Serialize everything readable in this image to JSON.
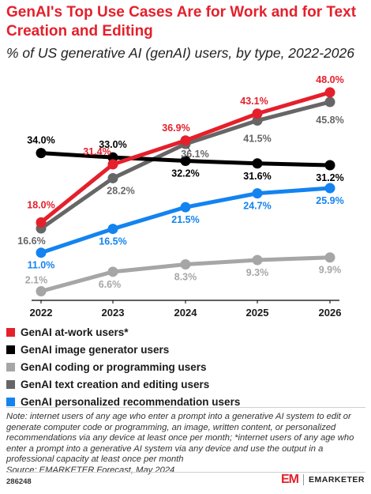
{
  "header": {
    "title": "GenAI's Top Use Cases Are for Work and for Text Creation and Editing",
    "subtitle": "% of US generative AI (genAI) users, by type, 2022-2026"
  },
  "chart_data": {
    "type": "line",
    "categories": [
      "2022",
      "2023",
      "2024",
      "2025",
      "2026"
    ],
    "ylim": [
      0,
      52
    ],
    "grid": false,
    "legend_position": "bottom",
    "series": [
      {
        "name": "GenAI at-work users*",
        "color": "#e4202b",
        "label_color": "#e4202b",
        "values": [
          18.0,
          31.4,
          36.9,
          43.1,
          48.0
        ],
        "labels": [
          "18.0%",
          "31.4%",
          "36.9%",
          "43.1%",
          "48.0%"
        ]
      },
      {
        "name": "GenAI image generator users",
        "color": "#000000",
        "label_color": "#000000",
        "values": [
          34.0,
          33.0,
          32.2,
          31.6,
          31.2
        ],
        "labels": [
          "34.0%",
          "33.0%",
          "32.2%",
          "31.6%",
          "31.2%"
        ]
      },
      {
        "name": "GenAI coding or programming users",
        "color": "#a6a6a6",
        "label_color": "#a6a6a6",
        "values": [
          2.1,
          6.6,
          8.3,
          9.3,
          9.9
        ],
        "labels": [
          "2.1%",
          "6.6%",
          "8.3%",
          "9.3%",
          "9.9%"
        ]
      },
      {
        "name": "GenAI text creation and editing users",
        "color": "#666666",
        "label_color": "#666666",
        "values": [
          16.6,
          28.2,
          36.1,
          41.5,
          45.8
        ],
        "labels": [
          "16.6%",
          "28.2%",
          "36.1%",
          "41.5%",
          "45.8%"
        ]
      },
      {
        "name": "GenAI personalized recommendation users",
        "color": "#1383f0",
        "label_color": "#1383f0",
        "values": [
          11.0,
          16.5,
          21.5,
          24.7,
          25.9
        ],
        "labels": [
          "11.0%",
          "16.5%",
          "21.5%",
          "24.7%",
          "25.9%"
        ]
      }
    ]
  },
  "footer": {
    "note": "Note: internet users of any age who enter a prompt into a generative AI system to edit or generate computer code or programming, an image, written content, or personalized recommendations via any device at least once per month; *internet users of any age who enter a prompt into a generative AI system via any device and use the output in a professional capacity at least once per month",
    "source": "Source: EMARKETER Forecast, May 2024",
    "chart_id": "286248",
    "logo_text": "EMARKETER"
  }
}
